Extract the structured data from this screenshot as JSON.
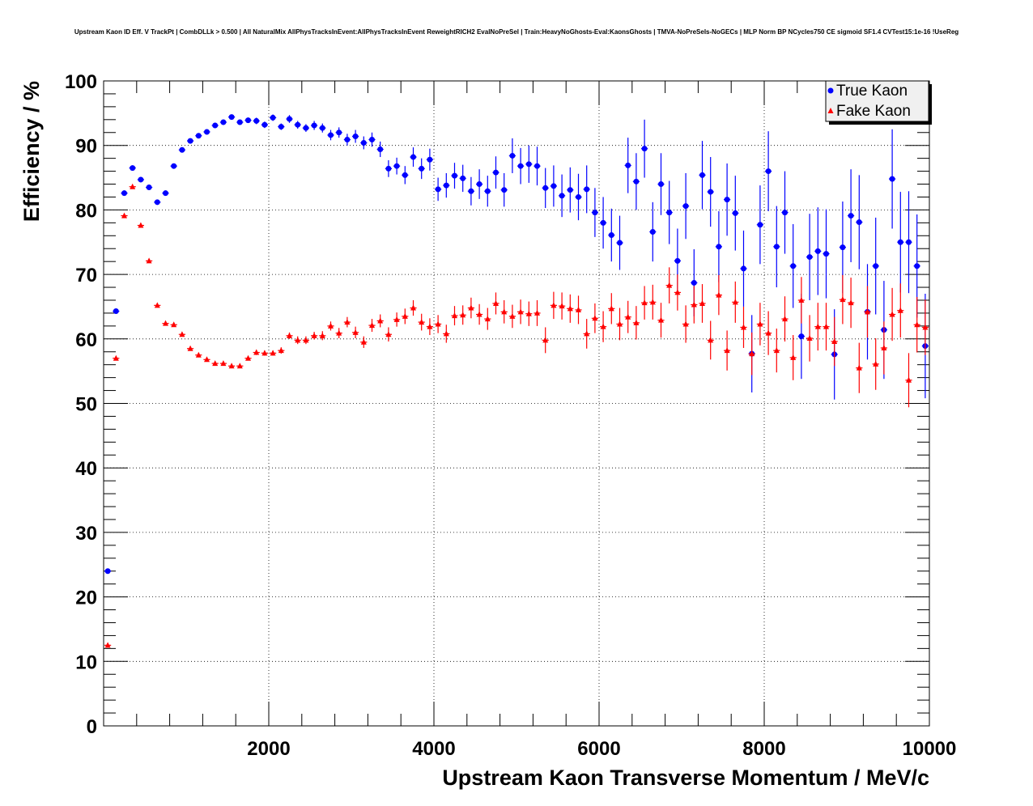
{
  "chart_data": {
    "type": "scatter",
    "title": "Upstream Kaon ID Eff. V TrackPt | CombDLLk > 0.500 | All NaturalMix AllPhysTracksInEvent:AllPhysTracksInEvent ReweightRICH2 EvalNoPreSel | Train:HeavyNoGhosts-Eval:KaonsGhosts | TMVA-NoPreSels-NoGECs | MLP Norm BP NCycles750 CE sigmoid SF1.4 CVTest15:1e-16 !UseReg",
    "xlabel": "Upstream Kaon Transverse Momentum / MeV/c",
    "ylabel": "Efficiency / %",
    "xlim": [
      0,
      10000
    ],
    "ylim": [
      0,
      100
    ],
    "x_ticks": [
      "2000",
      "4000",
      "6000",
      "8000",
      "10000"
    ],
    "y_ticks": [
      "0",
      "10",
      "20",
      "30",
      "40",
      "50",
      "60",
      "70",
      "80",
      "90",
      "100"
    ],
    "grid": true,
    "legend": "top-right",
    "series": [
      {
        "name": "True Kaon",
        "color": "#0000ff",
        "marker": "circle",
        "x": [
          50,
          150,
          250,
          350,
          450,
          550,
          650,
          750,
          850,
          950,
          1050,
          1150,
          1250,
          1350,
          1450,
          1550,
          1650,
          1750,
          1850,
          1950,
          2050,
          2150,
          2250,
          2350,
          2450,
          2550,
          2650,
          2750,
          2850,
          2950,
          3050,
          3150,
          3250,
          3350,
          3450,
          3550,
          3650,
          3750,
          3850,
          3950,
          4050,
          4150,
          4250,
          4350,
          4450,
          4550,
          4650,
          4750,
          4850,
          4950,
          5050,
          5150,
          5250,
          5350,
          5450,
          5550,
          5650,
          5750,
          5850,
          5950,
          6050,
          6150,
          6250,
          6350,
          6450,
          6550,
          6650,
          6750,
          6850,
          6950,
          7050,
          7150,
          7250,
          7350,
          7450,
          7550,
          7650,
          7750,
          7850,
          7950,
          8050,
          8150,
          8250,
          8350,
          8450,
          8550,
          8650,
          8750,
          8850,
          8950,
          9050,
          9150,
          9250,
          9350,
          9450,
          9550,
          9650,
          9750,
          9850,
          9950
        ],
        "y": [
          24.0,
          64.3,
          82.6,
          86.5,
          84.7,
          83.5,
          81.2,
          82.6,
          86.8,
          89.3,
          90.7,
          91.5,
          92.1,
          93.1,
          93.6,
          94.4,
          93.6,
          93.9,
          93.8,
          93.2,
          94.3,
          92.9,
          94.1,
          93.2,
          92.7,
          93.1,
          92.7,
          91.6,
          92.0,
          90.9,
          91.4,
          90.4,
          90.9,
          89.4,
          86.4,
          86.8,
          85.4,
          88.2,
          86.4,
          87.8,
          83.2,
          83.8,
          85.3,
          84.9,
          82.9,
          84.0,
          82.9,
          85.8,
          83.1,
          88.4,
          86.8,
          87.1,
          86.8,
          83.4,
          83.7,
          82.2,
          83.1,
          82.0,
          83.2,
          79.6,
          78.0,
          76.1,
          74.9,
          86.9,
          84.4,
          89.5,
          76.6,
          84.0,
          79.6,
          72.1,
          80.6,
          68.7,
          85.4,
          82.8,
          74.3,
          81.6,
          79.5,
          70.9,
          57.7,
          77.7,
          86.0,
          74.3,
          79.6,
          71.3,
          60.4,
          72.7,
          73.6,
          73.2,
          57.6,
          74.2,
          79.1,
          78.1,
          64.2,
          71.3,
          61.4,
          84.8,
          75.0,
          75.0,
          71.3,
          58.9
        ],
        "y_err": [
          0.3,
          0.3,
          0.4,
          0.4,
          0.4,
          0.4,
          0.4,
          0.4,
          0.4,
          0.4,
          0.4,
          0.4,
          0.4,
          0.4,
          0.4,
          0.4,
          0.4,
          0.4,
          0.5,
          0.5,
          0.5,
          0.5,
          0.6,
          0.6,
          0.6,
          0.7,
          0.7,
          0.8,
          0.8,
          0.9,
          1.0,
          1.0,
          1.1,
          1.2,
          1.3,
          1.3,
          1.4,
          1.5,
          1.6,
          1.7,
          1.8,
          1.9,
          2.0,
          2.1,
          2.2,
          2.3,
          2.4,
          2.5,
          2.6,
          2.7,
          2.8,
          2.9,
          3.0,
          3.1,
          3.2,
          3.3,
          3.5,
          3.6,
          3.7,
          3.8,
          4.0,
          4.1,
          4.2,
          4.3,
          4.4,
          4.5,
          4.6,
          4.8,
          4.9,
          5.0,
          5.1,
          5.2,
          5.3,
          5.4,
          5.5,
          5.6,
          5.8,
          5.9,
          6.0,
          6.1,
          6.2,
          6.3,
          6.4,
          6.5,
          6.6,
          6.7,
          6.8,
          6.9,
          7.0,
          7.1,
          7.2,
          7.3,
          7.4,
          7.5,
          7.6,
          7.7,
          7.8,
          7.9,
          8.0,
          8.1
        ]
      },
      {
        "name": "Fake Kaon",
        "color": "#ff0000",
        "marker": "triangle",
        "x": [
          50,
          150,
          250,
          350,
          450,
          550,
          650,
          750,
          850,
          950,
          1050,
          1150,
          1250,
          1350,
          1450,
          1550,
          1650,
          1750,
          1850,
          1950,
          2050,
          2150,
          2250,
          2350,
          2450,
          2550,
          2650,
          2750,
          2850,
          2950,
          3050,
          3150,
          3250,
          3350,
          3450,
          3550,
          3650,
          3750,
          3850,
          3950,
          4050,
          4150,
          4250,
          4350,
          4450,
          4550,
          4650,
          4750,
          4850,
          4950,
          5050,
          5150,
          5250,
          5350,
          5450,
          5550,
          5650,
          5750,
          5850,
          5950,
          6050,
          6150,
          6250,
          6350,
          6450,
          6550,
          6650,
          6750,
          6850,
          6950,
          7050,
          7150,
          7250,
          7350,
          7450,
          7550,
          7650,
          7750,
          7850,
          7950,
          8050,
          8150,
          8250,
          8350,
          8450,
          8550,
          8650,
          8750,
          8850,
          8950,
          9050,
          9150,
          9250,
          9350,
          9450,
          9550,
          9650,
          9750,
          9850,
          9950
        ],
        "y": [
          12.5,
          57.0,
          79.1,
          83.6,
          77.6,
          72.1,
          65.2,
          62.4,
          62.2,
          60.7,
          58.5,
          57.5,
          56.8,
          56.2,
          56.2,
          55.8,
          55.8,
          57.0,
          57.9,
          57.8,
          57.8,
          58.2,
          60.5,
          59.8,
          59.8,
          60.5,
          60.5,
          62.0,
          60.9,
          62.6,
          61.0,
          59.5,
          62.1,
          62.8,
          60.7,
          63.0,
          63.5,
          64.8,
          62.6,
          61.9,
          62.3,
          60.8,
          63.6,
          63.7,
          64.8,
          63.8,
          63.1,
          65.5,
          64.2,
          63.5,
          64.2,
          63.9,
          64.0,
          59.8,
          65.2,
          65.1,
          64.7,
          64.5,
          60.8,
          63.2,
          61.9,
          64.7,
          62.3,
          63.4,
          62.5,
          65.6,
          65.7,
          62.9,
          68.3,
          67.2,
          62.3,
          65.3,
          65.5,
          59.8,
          66.8,
          58.2,
          65.7,
          61.8,
          57.7,
          62.3,
          60.9,
          58.2,
          63.1,
          57.1,
          66.0,
          60.1,
          61.9,
          61.9,
          59.6,
          66.1,
          65.6,
          55.5,
          64.2,
          56.1,
          58.6,
          63.8,
          64.4,
          53.6,
          62.2,
          61.8
        ],
        "y_err": [
          0.2,
          0.3,
          0.3,
          0.3,
          0.3,
          0.3,
          0.3,
          0.3,
          0.3,
          0.3,
          0.3,
          0.3,
          0.3,
          0.3,
          0.3,
          0.3,
          0.3,
          0.3,
          0.4,
          0.4,
          0.4,
          0.5,
          0.5,
          0.6,
          0.6,
          0.6,
          0.7,
          0.7,
          0.8,
          0.8,
          0.9,
          0.9,
          1.0,
          1.0,
          1.1,
          1.1,
          1.2,
          1.2,
          1.3,
          1.3,
          1.4,
          1.4,
          1.5,
          1.5,
          1.6,
          1.6,
          1.7,
          1.7,
          1.8,
          1.8,
          1.9,
          1.9,
          2.0,
          2.0,
          2.1,
          2.1,
          2.2,
          2.2,
          2.3,
          2.3,
          2.4,
          2.4,
          2.5,
          2.5,
          2.6,
          2.6,
          2.7,
          2.7,
          2.8,
          2.8,
          2.9,
          2.9,
          3.0,
          3.0,
          3.1,
          3.1,
          3.2,
          3.2,
          3.3,
          3.3,
          3.4,
          3.4,
          3.5,
          3.5,
          3.6,
          3.6,
          3.7,
          3.7,
          3.8,
          3.8,
          3.9,
          3.9,
          4.0,
          4.0,
          4.1,
          4.1,
          4.2,
          4.2,
          4.3,
          4.3
        ]
      }
    ]
  }
}
